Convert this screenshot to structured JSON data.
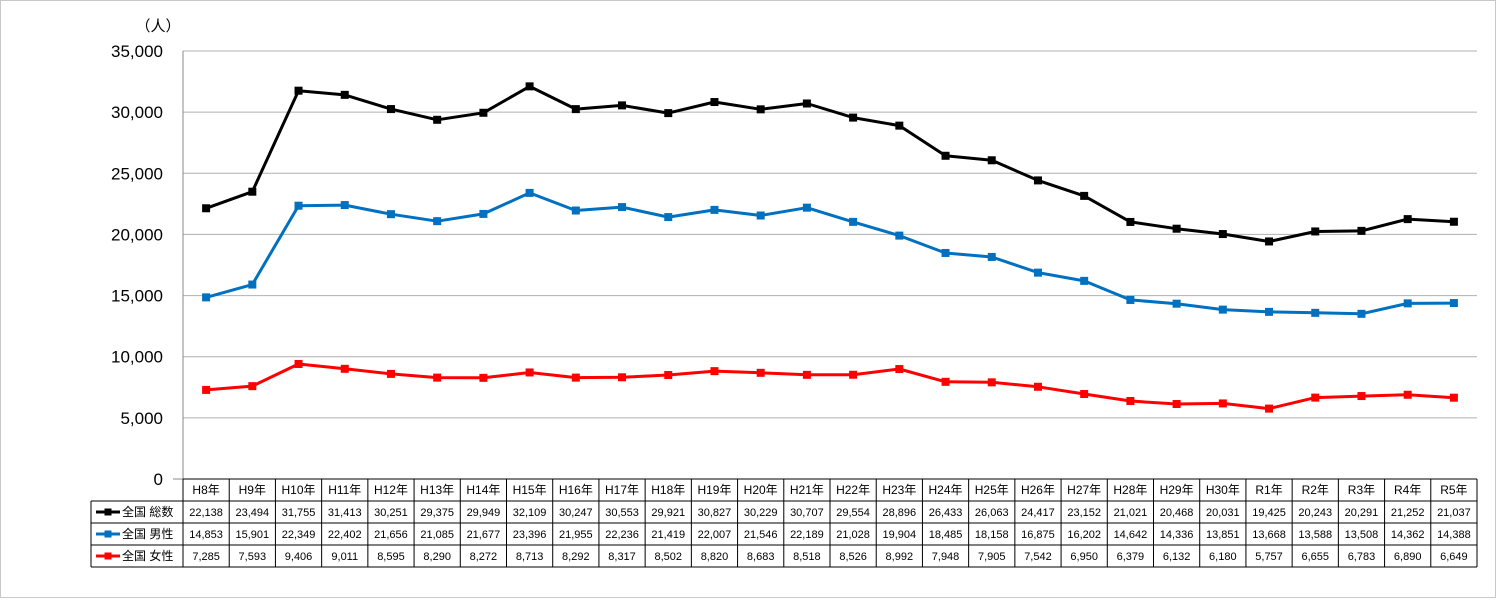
{
  "chart_data": {
    "type": "line",
    "unit_label": "（人）",
    "ylim": [
      0,
      35000
    ],
    "yticks": [
      0,
      5000,
      10000,
      15000,
      20000,
      25000,
      30000,
      35000
    ],
    "ytick_labels": [
      "0",
      "5,000",
      "10,000",
      "15,000",
      "20,000",
      "25,000",
      "30,000",
      "35,000"
    ],
    "grid": true,
    "legend_placement": "data-table-left",
    "categories": [
      "H8年",
      "H9年",
      "H10年",
      "H11年",
      "H12年",
      "H13年",
      "H14年",
      "H15年",
      "H16年",
      "H17年",
      "H18年",
      "H19年",
      "H20年",
      "H21年",
      "H22年",
      "H23年",
      "H24年",
      "H25年",
      "H26年",
      "H27年",
      "H28年",
      "H29年",
      "H30年",
      "R1年",
      "R2年",
      "R3年",
      "R4年",
      "R5年"
    ],
    "series": [
      {
        "name": "全国 総数",
        "color": "#000000",
        "values": [
          22138,
          23494,
          31755,
          31413,
          30251,
          29375,
          29949,
          32109,
          30247,
          30553,
          29921,
          30827,
          30229,
          30707,
          29554,
          28896,
          26433,
          26063,
          24417,
          23152,
          21021,
          20468,
          20031,
          19425,
          20243,
          20291,
          21252,
          21037
        ],
        "labels": [
          "22,138",
          "23,494",
          "31,755",
          "31,413",
          "30,251",
          "29,375",
          "29,949",
          "32,109",
          "30,247",
          "30,553",
          "29,921",
          "30,827",
          "30,229",
          "30,707",
          "29,554",
          "28,896",
          "26,433",
          "26,063",
          "24,417",
          "23,152",
          "21,021",
          "20,468",
          "20,031",
          "19,425",
          "20,243",
          "20,291",
          "21,252",
          "21,037"
        ]
      },
      {
        "name": "全国 男性",
        "color": "#0070c0",
        "values": [
          14853,
          15901,
          22349,
          22402,
          21656,
          21085,
          21677,
          23396,
          21955,
          22236,
          21419,
          22007,
          21546,
          22189,
          21028,
          19904,
          18485,
          18158,
          16875,
          16202,
          14642,
          14336,
          13851,
          13668,
          13588,
          13508,
          14362,
          14388
        ],
        "labels": [
          "14,853",
          "15,901",
          "22,349",
          "22,402",
          "21,656",
          "21,085",
          "21,677",
          "23,396",
          "21,955",
          "22,236",
          "21,419",
          "22,007",
          "21,546",
          "22,189",
          "21,028",
          "19,904",
          "18,485",
          "18,158",
          "16,875",
          "16,202",
          "14,642",
          "14,336",
          "13,851",
          "13,668",
          "13,588",
          "13,508",
          "14,362",
          "14,388"
        ]
      },
      {
        "name": "全国 女性",
        "color": "#ff0000",
        "values": [
          7285,
          7593,
          9406,
          9011,
          8595,
          8290,
          8272,
          8713,
          8292,
          8317,
          8502,
          8820,
          8683,
          8518,
          8526,
          8992,
          7948,
          7905,
          7542,
          6950,
          6379,
          6132,
          6180,
          5757,
          6655,
          6783,
          6890,
          6649
        ],
        "labels": [
          "7,285",
          "7,593",
          "9,406",
          "9,011",
          "8,595",
          "8,290",
          "8,272",
          "8,713",
          "8,292",
          "8,317",
          "8,502",
          "8,820",
          "8,683",
          "8,518",
          "8,526",
          "8,992",
          "7,948",
          "7,905",
          "7,542",
          "6,950",
          "6,379",
          "6,132",
          "6,180",
          "5,757",
          "6,655",
          "6,783",
          "6,890",
          "6,649"
        ]
      }
    ]
  }
}
